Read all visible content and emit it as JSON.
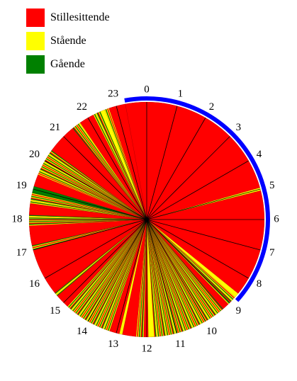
{
  "chart_data": {
    "type": "pie",
    "legend": [
      {
        "key": "sitting",
        "label": "Stillesittende",
        "color": "#ff0000"
      },
      {
        "key": "standing",
        "label": "Stående",
        "color": "#ffff00"
      },
      {
        "key": "walking",
        "label": "Gående",
        "color": "#008000"
      }
    ],
    "hour_labels": [
      "0",
      "1",
      "2",
      "3",
      "4",
      "5",
      "6",
      "7",
      "8",
      "9",
      "10",
      "11",
      "12",
      "13",
      "14",
      "15",
      "16",
      "17",
      "18",
      "19",
      "20",
      "21",
      "22",
      "23"
    ],
    "recorded_span_hours": [
      23.3,
      8.8
    ],
    "recorded_span_color": "#0000ff",
    "activity_segments": [
      {
        "start": 23.3,
        "end": 4.95,
        "state": "sitting"
      },
      {
        "start": 4.95,
        "end": 5.05,
        "state": "standing"
      },
      {
        "start": 5.05,
        "end": 8.6,
        "state": "sitting"
      },
      {
        "start": 8.6,
        "end": 8.75,
        "state": "standing"
      },
      {
        "start": 8.75,
        "end": 9.1,
        "state": "mixed"
      },
      {
        "start": 9.1,
        "end": 9.3,
        "state": "sitting"
      },
      {
        "start": 9.3,
        "end": 11.75,
        "state": "mixed"
      },
      {
        "start": 11.75,
        "end": 11.95,
        "state": "standing"
      },
      {
        "start": 11.95,
        "end": 12.1,
        "state": "sitting"
      },
      {
        "start": 12.1,
        "end": 12.35,
        "state": "mixed"
      },
      {
        "start": 12.35,
        "end": 12.8,
        "state": "sitting"
      },
      {
        "start": 12.8,
        "end": 12.9,
        "state": "standing"
      },
      {
        "start": 12.9,
        "end": 13.2,
        "state": "sitting"
      },
      {
        "start": 13.2,
        "end": 14.85,
        "state": "mixed"
      },
      {
        "start": 14.85,
        "end": 15.3,
        "state": "sitting"
      },
      {
        "start": 15.3,
        "end": 15.45,
        "state": "mixed"
      },
      {
        "start": 15.45,
        "end": 17.0,
        "state": "sitting"
      },
      {
        "start": 17.0,
        "end": 17.15,
        "state": "mixed"
      },
      {
        "start": 17.15,
        "end": 17.8,
        "state": "sitting"
      },
      {
        "start": 17.8,
        "end": 18.15,
        "state": "mixed"
      },
      {
        "start": 18.15,
        "end": 18.5,
        "state": "sitting"
      },
      {
        "start": 18.5,
        "end": 18.9,
        "state": "mixed"
      },
      {
        "start": 18.9,
        "end": 19.1,
        "state": "walking"
      },
      {
        "start": 19.1,
        "end": 19.5,
        "state": "sitting"
      },
      {
        "start": 19.5,
        "end": 20.4,
        "state": "mixed"
      },
      {
        "start": 20.4,
        "end": 21.4,
        "state": "sitting"
      },
      {
        "start": 21.4,
        "end": 21.7,
        "state": "mixed"
      },
      {
        "start": 21.7,
        "end": 22.2,
        "state": "sitting"
      },
      {
        "start": 22.2,
        "end": 22.45,
        "state": "mixed"
      },
      {
        "start": 22.45,
        "end": 22.6,
        "state": "standing"
      },
      {
        "start": 22.6,
        "end": 22.75,
        "state": "mixed"
      },
      {
        "start": 22.75,
        "end": 23.3,
        "state": "sitting"
      }
    ],
    "mixed_pattern": [
      "standing",
      "walking",
      "standing",
      "sitting",
      "standing",
      "walking",
      "standing",
      "standing",
      "walking",
      "sitting"
    ]
  }
}
